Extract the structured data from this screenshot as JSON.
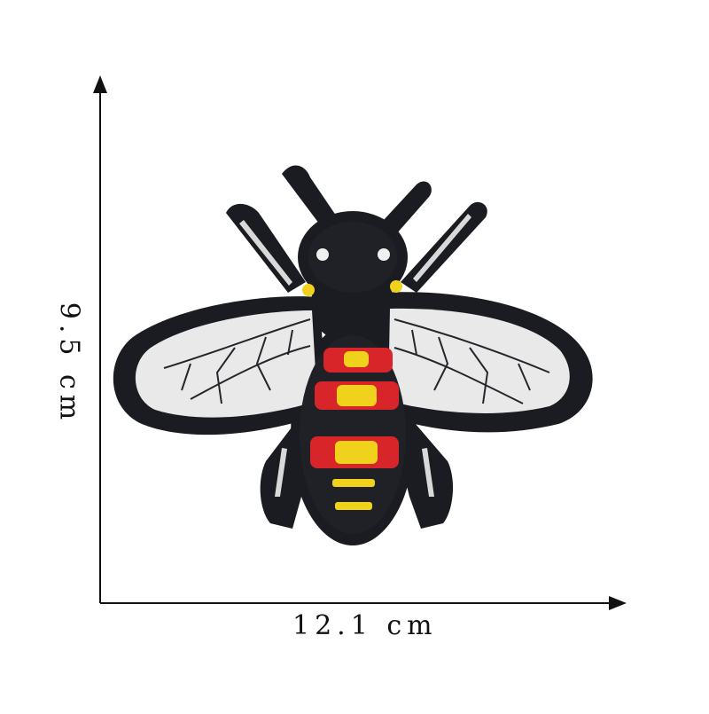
{
  "dimensions": {
    "width_label": "12.1 cm",
    "height_label": "9.5 cm"
  },
  "patch": {
    "subject": "bee-embroidered-patch",
    "colors": {
      "border": "#1b1c22",
      "body": "#202127",
      "wing": "#e9e9e9",
      "wing_vein": "#26272c",
      "stripe_red": "#d8252a",
      "stripe_yellow": "#f0d21c",
      "eye": "#f0f0f0"
    }
  }
}
